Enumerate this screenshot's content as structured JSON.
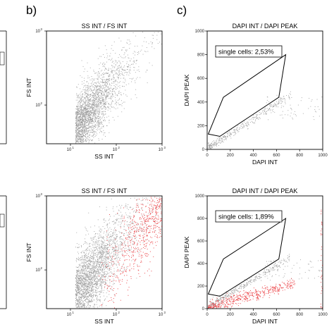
{
  "panel_letters": [
    "b)",
    "c)"
  ],
  "colors": {
    "events": "#9a9a9a",
    "highlight_events": "#e8262b",
    "gate": "#000000",
    "frame": "#000000"
  },
  "chart_data": [
    {
      "id": "b-top",
      "type": "scatter",
      "title": "SS INT / FS INT",
      "xlabel": "SS INT",
      "ylabel": "FS INT",
      "xscale": "log",
      "yscale": "log",
      "xlim": [
        3,
        1000
      ],
      "ylim": [
        30,
        1000
      ],
      "xticks": [
        10,
        100,
        1000
      ],
      "xtick_labels": [
        [
          "10",
          "1"
        ],
        [
          "10",
          "2"
        ],
        [
          "10",
          "3"
        ]
      ],
      "yticks": [
        100,
        1000
      ],
      "ytick_labels": [
        [
          "10",
          "2"
        ],
        [
          "10",
          "3"
        ]
      ],
      "series": [
        {
          "color": "#9a9a9a",
          "density_core": {
            "x_center": 18,
            "y_center": 60,
            "x_spread": 0.45,
            "y_spread": 0.22,
            "trend_slope": 0.75
          }
        }
      ],
      "gate": null
    },
    {
      "id": "c-top",
      "type": "scatter",
      "title": "DAPI INT / DAPI PEAK",
      "xlabel": "DAPI INT",
      "ylabel": "DAPI PEAK",
      "xscale": "linear",
      "yscale": "linear",
      "xlim": [
        0,
        1000
      ],
      "ylim": [
        0,
        1000
      ],
      "xticks": [
        0,
        200,
        400,
        600,
        800,
        1000
      ],
      "yticks": [
        0,
        200,
        400,
        600,
        800,
        1000
      ],
      "series": [
        {
          "color": "#9a9a9a",
          "population": "diagonal"
        }
      ],
      "gate": {
        "label": "single cells: 2,53%",
        "polygon": [
          [
            10,
            130
          ],
          [
            140,
            440
          ],
          [
            680,
            800
          ],
          [
            620,
            440
          ],
          [
            110,
            110
          ]
        ]
      }
    },
    {
      "id": "b-bottom",
      "type": "scatter",
      "title": "SS INT / FS INT",
      "xlabel": "SS INT",
      "ylabel": "FS INT",
      "xscale": "log",
      "yscale": "log",
      "xlim": [
        3,
        1000
      ],
      "ylim": [
        30,
        1000
      ],
      "xticks": [
        10,
        100,
        1000
      ],
      "xtick_labels": [
        [
          "10",
          "1"
        ],
        [
          "10",
          "2"
        ],
        [
          "10",
          "3"
        ]
      ],
      "yticks": [
        100,
        1000
      ],
      "ytick_labels": [
        [
          "10",
          "2"
        ],
        [
          "10",
          "3"
        ]
      ],
      "series": [
        {
          "color": "#9a9a9a",
          "density_core": {
            "x_center": 18,
            "y_center": 60,
            "x_spread": 0.5,
            "y_spread": 0.25,
            "trend_slope": 0.75
          }
        },
        {
          "color": "#e8262b",
          "region": "upper-right"
        }
      ],
      "gate": null
    },
    {
      "id": "c-bottom",
      "type": "scatter",
      "title": "DAPI INT / DAPI PEAK",
      "xlabel": "DAPI INT",
      "ylabel": "DAPI PEAK",
      "xscale": "linear",
      "yscale": "linear",
      "xlim": [
        0,
        1000
      ],
      "ylim": [
        0,
        1000
      ],
      "xticks": [
        0,
        200,
        400,
        600,
        800,
        1000
      ],
      "yticks": [
        0,
        200,
        400,
        600,
        800,
        1000
      ],
      "series": [
        {
          "color": "#9a9a9a",
          "population": "diagonal"
        },
        {
          "color": "#e8262b",
          "population": "low-peak"
        }
      ],
      "gate": {
        "label": "single cells: 1,89%",
        "polygon": [
          [
            10,
            130
          ],
          [
            140,
            440
          ],
          [
            680,
            800
          ],
          [
            620,
            440
          ],
          [
            110,
            110
          ]
        ]
      }
    }
  ]
}
